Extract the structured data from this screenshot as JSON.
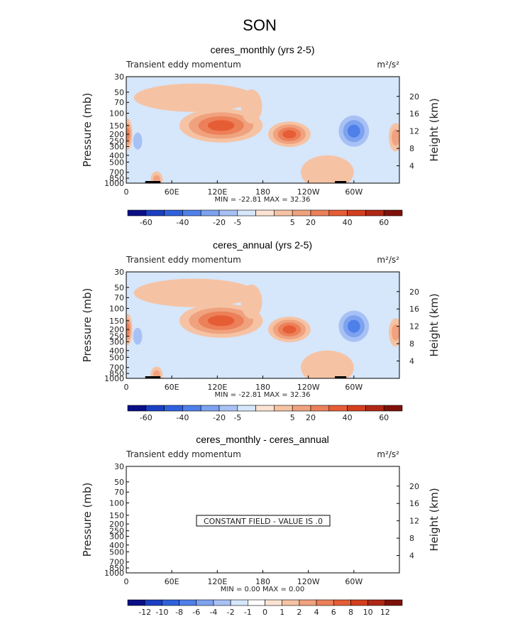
{
  "figure_title": "SON",
  "chart_data": [
    {
      "type": "heatmap",
      "title": "ceres_monthly (yrs 2-5)",
      "left_label": "Transient eddy momentum",
      "units": "m²/s²",
      "ylabel": "Pressure (mb)",
      "y2label": "Height (km)",
      "y_ticks": [
        "30",
        "50",
        "70",
        "100",
        "150",
        "200",
        "250",
        "300",
        "400",
        "500",
        "700",
        "850",
        "1000"
      ],
      "y2_ticks": [
        "4",
        "8",
        "12",
        "16",
        "20"
      ],
      "x_ticks": [
        "0",
        "60E",
        "120E",
        "180",
        "120W",
        "60W"
      ],
      "minmax": "MIN = -22.81   MAX =  32.36",
      "colorbar_labels": [
        "-60",
        "-40",
        "-20",
        "-5",
        "5",
        "20",
        "40",
        "60"
      ],
      "colorbar_colors": [
        "#0a0f85",
        "#1a3fc2",
        "#2f61dd",
        "#4f7fe8",
        "#7da2ef",
        "#a8c1f5",
        "#d6e6fb",
        "#fbe3d3",
        "#f5c3a4",
        "#f0a27e",
        "#ec8059",
        "#e65d35",
        "#d33f1f",
        "#b02715",
        "#7e1109"
      ],
      "blobs": [
        {
          "lon": 2,
          "p": 200,
          "w": 6,
          "h": 0.55,
          "levels": [
            1,
            2,
            3
          ]
        },
        {
          "lon": 125,
          "p": 150,
          "w": 55,
          "h": 0.6,
          "levels": [
            1,
            2,
            3,
            4
          ]
        },
        {
          "lon": 215,
          "p": 200,
          "w": 28,
          "h": 0.45,
          "levels": [
            1,
            2,
            3,
            4
          ]
        },
        {
          "lon": 355,
          "p": 220,
          "w": 9,
          "h": 0.5,
          "levels": [
            1,
            2
          ]
        },
        {
          "lon": 300,
          "p": 180,
          "w": 20,
          "h": 0.55,
          "levels": [
            -1,
            -2,
            -3
          ]
        },
        {
          "lon": 90,
          "p": 60,
          "w": 80,
          "h": 0.5,
          "levels": [
            1
          ]
        },
        {
          "lon": 265,
          "p": 700,
          "w": 35,
          "h": 0.6,
          "levels": [
            1
          ]
        },
        {
          "lon": 40,
          "p": 900,
          "w": 8,
          "h": 0.3,
          "levels": [
            1,
            2
          ]
        },
        {
          "lon": 15,
          "p": 250,
          "w": 6,
          "h": 0.3,
          "levels": [
            -1
          ]
        },
        {
          "lon": 165,
          "p": 80,
          "w": 14,
          "h": 0.6,
          "levels": [
            1
          ]
        }
      ]
    },
    {
      "type": "heatmap",
      "title": "ceres_annual (yrs 2-5)",
      "left_label": "Transient eddy momentum",
      "units": "m²/s²",
      "ylabel": "Pressure (mb)",
      "y2label": "Height (km)",
      "y_ticks": [
        "30",
        "50",
        "70",
        "100",
        "150",
        "200",
        "250",
        "300",
        "400",
        "500",
        "700",
        "850",
        "1000"
      ],
      "y2_ticks": [
        "4",
        "8",
        "12",
        "16",
        "20"
      ],
      "x_ticks": [
        "0",
        "60E",
        "120E",
        "180",
        "120W",
        "60W"
      ],
      "minmax": "MIN = -22.81   MAX =  32.36",
      "colorbar_labels": [
        "-60",
        "-40",
        "-20",
        "-5",
        "5",
        "20",
        "40",
        "60"
      ],
      "colorbar_colors": [
        "#0a0f85",
        "#1a3fc2",
        "#2f61dd",
        "#4f7fe8",
        "#7da2ef",
        "#a8c1f5",
        "#d6e6fb",
        "#fbe3d3",
        "#f5c3a4",
        "#f0a27e",
        "#ec8059",
        "#e65d35",
        "#d33f1f",
        "#b02715",
        "#7e1109"
      ],
      "blobs": [
        {
          "lon": 2,
          "p": 200,
          "w": 6,
          "h": 0.55,
          "levels": [
            1,
            2,
            3
          ]
        },
        {
          "lon": 125,
          "p": 150,
          "w": 55,
          "h": 0.6,
          "levels": [
            1,
            2,
            3,
            4
          ]
        },
        {
          "lon": 215,
          "p": 200,
          "w": 28,
          "h": 0.45,
          "levels": [
            1,
            2,
            3,
            4
          ]
        },
        {
          "lon": 355,
          "p": 220,
          "w": 9,
          "h": 0.5,
          "levels": [
            1,
            2
          ]
        },
        {
          "lon": 300,
          "p": 180,
          "w": 20,
          "h": 0.55,
          "levels": [
            -1,
            -2,
            -3
          ]
        },
        {
          "lon": 90,
          "p": 60,
          "w": 80,
          "h": 0.5,
          "levels": [
            1
          ]
        },
        {
          "lon": 265,
          "p": 700,
          "w": 35,
          "h": 0.6,
          "levels": [
            1
          ]
        },
        {
          "lon": 40,
          "p": 900,
          "w": 8,
          "h": 0.3,
          "levels": [
            1,
            2
          ]
        },
        {
          "lon": 15,
          "p": 250,
          "w": 6,
          "h": 0.3,
          "levels": [
            -1
          ]
        },
        {
          "lon": 165,
          "p": 80,
          "w": 14,
          "h": 0.6,
          "levels": [
            1
          ]
        }
      ]
    },
    {
      "type": "heatmap",
      "title": "ceres_monthly - ceres_annual",
      "left_label": "Transient eddy momentum",
      "units": "m²/s²",
      "ylabel": "Pressure (mb)",
      "y2label": "Height (km)",
      "y_ticks": [
        "30",
        "50",
        "70",
        "100",
        "150",
        "200",
        "250",
        "300",
        "400",
        "500",
        "700",
        "850",
        "1000"
      ],
      "y2_ticks": [
        "4",
        "8",
        "12",
        "16",
        "20"
      ],
      "x_ticks": [
        "0",
        "60E",
        "120E",
        "180",
        "120W",
        "60W"
      ],
      "minmax": "MIN =   0.00   MAX =   0.00",
      "constant_text": "CONSTANT FIELD - VALUE IS .0",
      "colorbar_labels": [
        "-12",
        "-10",
        "-8",
        "-6",
        "-4",
        "-2",
        "-1",
        "0",
        "1",
        "2",
        "4",
        "6",
        "8",
        "10",
        "12"
      ],
      "colorbar_colors": [
        "#0a0f85",
        "#1a3fc2",
        "#2f61dd",
        "#4f7fe8",
        "#7da2ef",
        "#a8c1f5",
        "#d6e6fb",
        "#ffffff",
        "#fbe3d3",
        "#f5c3a4",
        "#f0a27e",
        "#ec8059",
        "#e65d35",
        "#d33f1f",
        "#b02715",
        "#7e1109"
      ],
      "blobs": []
    }
  ]
}
